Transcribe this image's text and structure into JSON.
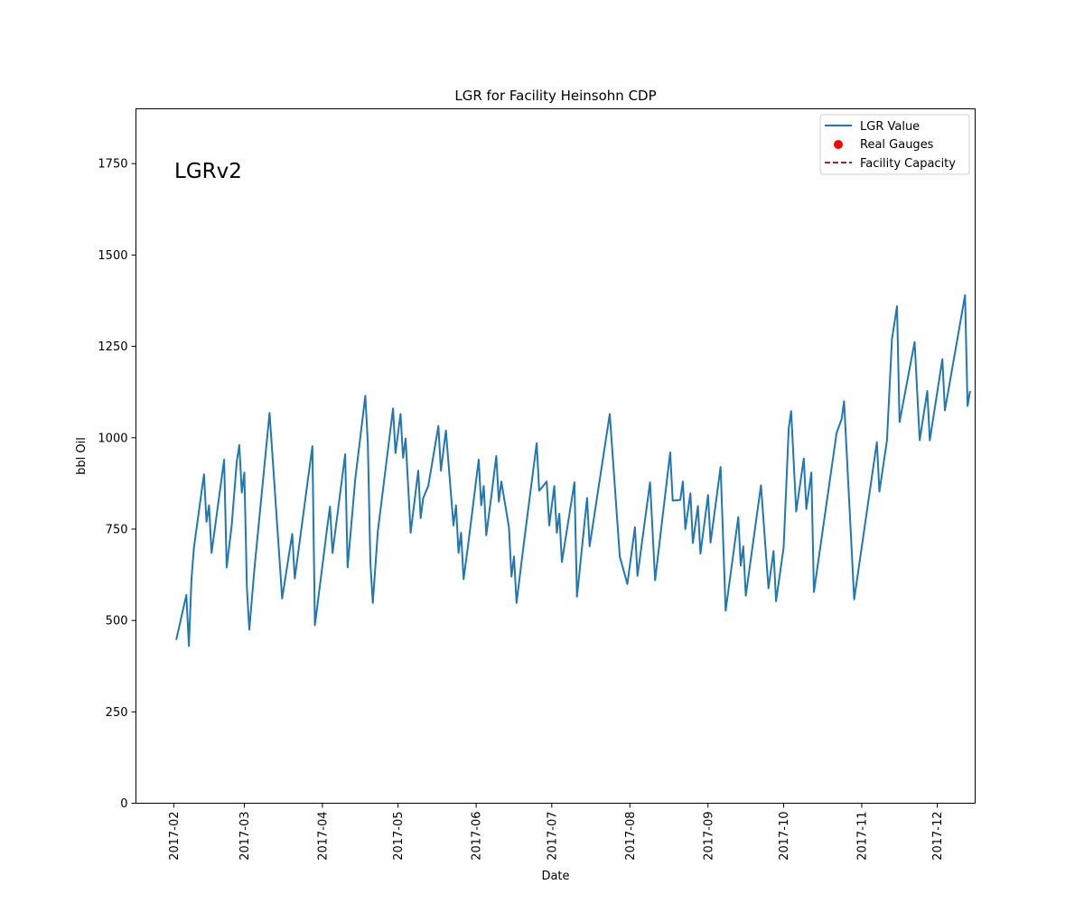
{
  "chart_data": {
    "type": "line",
    "title": "LGR for Facility Heinsohn CDP",
    "xlabel": "Date",
    "ylabel": "bbl Oil",
    "annotation": "LGRv2",
    "xlim": [
      "2017-01-17",
      "2017-12-16"
    ],
    "ylim": [
      0,
      1900
    ],
    "x_ticks": [
      "2017-02",
      "2017-03",
      "2017-04",
      "2017-05",
      "2017-06",
      "2017-07",
      "2017-08",
      "2017-09",
      "2017-10",
      "2017-11",
      "2017-12"
    ],
    "y_ticks": [
      0,
      250,
      500,
      750,
      1000,
      1250,
      1500,
      1750
    ],
    "grid": false,
    "legend": {
      "position": "upper-right",
      "entries": [
        {
          "label": "LGR Value",
          "kind": "line",
          "color": "#1f77b4"
        },
        {
          "label": "Real Gauges",
          "kind": "dot",
          "color": "#ff0000"
        },
        {
          "label": "Facility Capacity",
          "kind": "dashed",
          "color": "#b22222"
        }
      ]
    },
    "series": [
      {
        "name": "LGR Value",
        "color": "#1f77b4",
        "points": [
          [
            "2017-02-02",
            447
          ],
          [
            "2017-02-06",
            570
          ],
          [
            "2017-02-07",
            430
          ],
          [
            "2017-02-08",
            610
          ],
          [
            "2017-02-09",
            700
          ],
          [
            "2017-02-13",
            900
          ],
          [
            "2017-02-14",
            770
          ],
          [
            "2017-02-15",
            815
          ],
          [
            "2017-02-16",
            685
          ],
          [
            "2017-02-21",
            940
          ],
          [
            "2017-02-22",
            645
          ],
          [
            "2017-02-24",
            760
          ],
          [
            "2017-02-26",
            935
          ],
          [
            "2017-02-27",
            980
          ],
          [
            "2017-02-28",
            850
          ],
          [
            "2017-03-01",
            905
          ],
          [
            "2017-03-02",
            590
          ],
          [
            "2017-03-03",
            475
          ],
          [
            "2017-03-05",
            640
          ],
          [
            "2017-03-11",
            1068
          ],
          [
            "2017-03-15",
            665
          ],
          [
            "2017-03-16",
            560
          ],
          [
            "2017-03-20",
            737
          ],
          [
            "2017-03-21",
            615
          ],
          [
            "2017-03-28",
            977
          ],
          [
            "2017-03-29",
            487
          ],
          [
            "2017-04-03",
            760
          ],
          [
            "2017-04-04",
            812
          ],
          [
            "2017-04-05",
            685
          ],
          [
            "2017-04-10",
            955
          ],
          [
            "2017-04-11",
            645
          ],
          [
            "2017-04-12",
            725
          ],
          [
            "2017-04-14",
            885
          ],
          [
            "2017-04-18",
            1115
          ],
          [
            "2017-04-19",
            985
          ],
          [
            "2017-04-20",
            660
          ],
          [
            "2017-04-21",
            548
          ],
          [
            "2017-04-23",
            745
          ],
          [
            "2017-04-29",
            1080
          ],
          [
            "2017-04-30",
            958
          ],
          [
            "2017-05-02",
            1065
          ],
          [
            "2017-05-03",
            945
          ],
          [
            "2017-05-04",
            998
          ],
          [
            "2017-05-06",
            740
          ],
          [
            "2017-05-09",
            910
          ],
          [
            "2017-05-10",
            780
          ],
          [
            "2017-05-11",
            835
          ],
          [
            "2017-05-13",
            868
          ],
          [
            "2017-05-17",
            1032
          ],
          [
            "2017-05-18",
            910
          ],
          [
            "2017-05-20",
            1020
          ],
          [
            "2017-05-23",
            760
          ],
          [
            "2017-05-24",
            815
          ],
          [
            "2017-05-25",
            685
          ],
          [
            "2017-05-26",
            740
          ],
          [
            "2017-05-27",
            613
          ],
          [
            "2017-05-29",
            718
          ],
          [
            "2017-06-02",
            940
          ],
          [
            "2017-06-03",
            815
          ],
          [
            "2017-06-04",
            868
          ],
          [
            "2017-06-05",
            733
          ],
          [
            "2017-06-07",
            840
          ],
          [
            "2017-06-09",
            950
          ],
          [
            "2017-06-10",
            825
          ],
          [
            "2017-06-11",
            880
          ],
          [
            "2017-06-14",
            755
          ],
          [
            "2017-06-15",
            620
          ],
          [
            "2017-06-16",
            675
          ],
          [
            "2017-06-17",
            548
          ],
          [
            "2017-06-20",
            715
          ],
          [
            "2017-06-25",
            985
          ],
          [
            "2017-06-26",
            855
          ],
          [
            "2017-06-29",
            880
          ],
          [
            "2017-06-30",
            760
          ],
          [
            "2017-07-02",
            868
          ],
          [
            "2017-07-03",
            740
          ],
          [
            "2017-07-04",
            792
          ],
          [
            "2017-07-05",
            660
          ],
          [
            "2017-07-10",
            878
          ],
          [
            "2017-07-11",
            565
          ],
          [
            "2017-07-15",
            835
          ],
          [
            "2017-07-16",
            703
          ],
          [
            "2017-07-24",
            1065
          ],
          [
            "2017-07-28",
            675
          ],
          [
            "2017-07-31",
            600
          ],
          [
            "2017-08-03",
            755
          ],
          [
            "2017-08-04",
            622
          ],
          [
            "2017-08-09",
            878
          ],
          [
            "2017-08-11",
            610
          ],
          [
            "2017-08-17",
            960
          ],
          [
            "2017-08-18",
            828
          ],
          [
            "2017-08-21",
            830
          ],
          [
            "2017-08-22",
            880
          ],
          [
            "2017-08-23",
            750
          ],
          [
            "2017-08-25",
            848
          ],
          [
            "2017-08-26",
            712
          ],
          [
            "2017-08-28",
            813
          ],
          [
            "2017-08-29",
            683
          ],
          [
            "2017-09-01",
            843
          ],
          [
            "2017-09-02",
            713
          ],
          [
            "2017-09-06",
            920
          ],
          [
            "2017-09-08",
            527
          ],
          [
            "2017-09-13",
            783
          ],
          [
            "2017-09-14",
            650
          ],
          [
            "2017-09-15",
            703
          ],
          [
            "2017-09-16",
            568
          ],
          [
            "2017-09-22",
            870
          ],
          [
            "2017-09-25",
            588
          ],
          [
            "2017-09-27",
            690
          ],
          [
            "2017-09-28",
            553
          ],
          [
            "2017-10-01",
            700
          ],
          [
            "2017-10-03",
            1025
          ],
          [
            "2017-10-04",
            1073
          ],
          [
            "2017-10-06",
            798
          ],
          [
            "2017-10-09",
            943
          ],
          [
            "2017-10-10",
            805
          ],
          [
            "2017-10-12",
            905
          ],
          [
            "2017-10-13",
            578
          ],
          [
            "2017-10-22",
            1013
          ],
          [
            "2017-10-24",
            1050
          ],
          [
            "2017-10-25",
            1100
          ],
          [
            "2017-10-29",
            558
          ],
          [
            "2017-11-07",
            988
          ],
          [
            "2017-11-08",
            853
          ],
          [
            "2017-11-11",
            993
          ],
          [
            "2017-11-13",
            1270
          ],
          [
            "2017-11-15",
            1360
          ],
          [
            "2017-11-16",
            1043
          ],
          [
            "2017-11-22",
            1262
          ],
          [
            "2017-11-24",
            993
          ],
          [
            "2017-11-27",
            1128
          ],
          [
            "2017-11-28",
            993
          ],
          [
            "2017-12-03",
            1215
          ],
          [
            "2017-12-04",
            1075
          ],
          [
            "2017-12-12",
            1390
          ],
          [
            "2017-12-13",
            1087
          ],
          [
            "2017-12-14",
            1128
          ]
        ]
      }
    ]
  }
}
